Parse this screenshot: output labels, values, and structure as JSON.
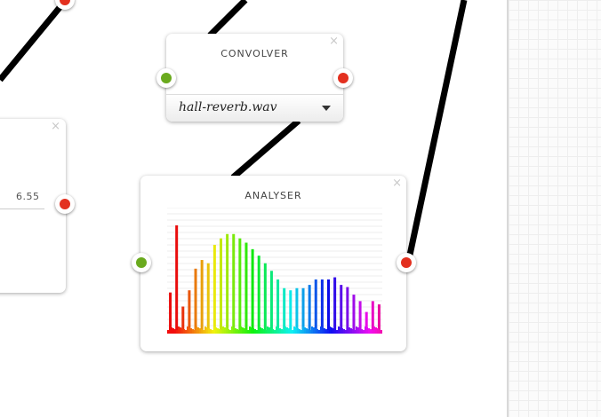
{
  "nodes": {
    "convolver": {
      "title": "CONVOLVER",
      "close": "×",
      "impulse_file": "hall-reverb.wav"
    },
    "analyser": {
      "title": "ANALYSER",
      "close": "×"
    },
    "left_node": {
      "close": "×",
      "value": "6.55"
    }
  },
  "colors": {
    "input_port": "#6aaa1e",
    "output_port": "#e3301f",
    "wire": "#000000"
  },
  "chart_data": {
    "type": "bar",
    "series": [
      {
        "name": "",
        "values": [
          38,
          100,
          25,
          40,
          60,
          68,
          65,
          82,
          88,
          92,
          92,
          88,
          84,
          78,
          72,
          65,
          58,
          50,
          42,
          40,
          42,
          42,
          45,
          50,
          50,
          50,
          52,
          45,
          43,
          36,
          30,
          20,
          30,
          27
        ]
      }
    ],
    "ylim": [
      0,
      100
    ],
    "grid": true
  }
}
